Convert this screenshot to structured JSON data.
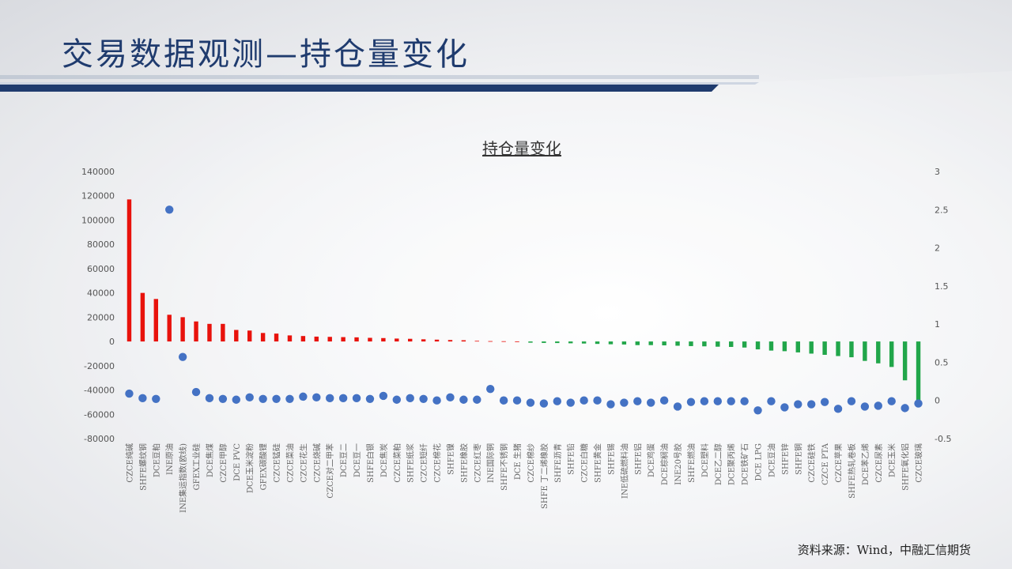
{
  "slide": {
    "title": "交易数据观测—持仓量变化",
    "source": "资料来源：Wind，中融汇信期货"
  },
  "colors": {
    "positive": "#e8120c",
    "negative": "#21a64a",
    "dot": "#4472c4",
    "title": "#1f3b6e",
    "band": "#1f3b6e"
  },
  "chart_data": {
    "type": "bar",
    "title": "持仓量变化",
    "legend": "none",
    "grid": false,
    "ylim": [
      -80000,
      140000
    ],
    "y2lim": [
      -0.5,
      3
    ],
    "yticks": [
      "140000",
      "120000",
      "100000",
      "80000",
      "60000",
      "40000",
      "20000",
      "0",
      "-20000",
      "-40000",
      "-60000",
      "-80000"
    ],
    "y2ticks": [
      "3",
      "2.5",
      "2",
      "1.5",
      "1",
      "0.5",
      "0",
      "-0.5"
    ],
    "categories": [
      "CZCE纯碱",
      "SHFE螺纹钢",
      "DCE豆粕",
      "INE原油",
      "INE集运指数(欧线)",
      "GFEX工业硅",
      "DCE焦煤",
      "CZCE甲醇",
      "DCE PVC",
      "DCE玉米淀粉",
      "GFEX碳酸锂",
      "CZCE锰硅",
      "CZCE菜油",
      "CZCE花生",
      "CZCE烧碱",
      "CZCE对二甲苯",
      "DCE豆二",
      "DCE豆一",
      "SHFE白银",
      "DCE焦炭",
      "CZCE菜粕",
      "SHFE纸浆",
      "CZCE短纤",
      "CZCE棉花",
      "SHFE镍",
      "SHFE橡胶",
      "CZCE红枣",
      "INE国际铜",
      "SHFE不锈钢",
      "DCE 生猪",
      "CZCE棉纱",
      "SHFE 丁二烯橡胶",
      "SHFE沥青",
      "SHFE铅",
      "CZCE白糖",
      "SHFE黄金",
      "SHFE锡",
      "INE低硫燃料油",
      "SHFE铝",
      "DCE鸡蛋",
      "DCE棕榈油",
      "INE20号胶",
      "SHFE燃油",
      "DCE塑料",
      "DCE乙二醇",
      "DCE聚丙烯",
      "DCE铁矿石",
      "DCE LPG",
      "DCE豆油",
      "SHFE锌",
      "SHFE铜",
      "CZCE硅铁",
      "CZCE PTA",
      "CZCE苹果",
      "SHFE热轧卷板",
      "DCE苯乙烯",
      "CZCE尿素",
      "DCE玉米",
      "SHFE氧化铝",
      "CZCE玻璃"
    ],
    "series": [
      {
        "type": "bar",
        "axis": "left",
        "values": [
          117000,
          40000,
          35000,
          22000,
          20000,
          16500,
          14500,
          14500,
          9500,
          9000,
          7000,
          6500,
          5000,
          4500,
          4000,
          3800,
          3600,
          3400,
          3000,
          2800,
          2400,
          2200,
          1800,
          1500,
          1200,
          1000,
          500,
          300,
          200,
          0,
          -1000,
          -1200,
          -1300,
          -1500,
          -1700,
          -2000,
          -2300,
          -2500,
          -3000,
          -3000,
          -3200,
          -3500,
          -3800,
          -4000,
          -4300,
          -4500,
          -5000,
          -6500,
          -7500,
          -8000,
          -9000,
          -10000,
          -11000,
          -12000,
          -13000,
          -16000,
          -18000,
          -21000,
          -32000,
          -52000
        ]
      },
      {
        "type": "scatter",
        "axis": "right",
        "values": [
          0.09,
          0.03,
          0.02,
          2.5,
          0.57,
          0.11,
          0.03,
          0.02,
          0.01,
          0.04,
          0.02,
          0.02,
          0.02,
          0.05,
          0.04,
          0.03,
          0.03,
          0.03,
          0.02,
          0.06,
          0.01,
          0.03,
          0.02,
          0.0,
          0.04,
          0.01,
          0.01,
          0.15,
          0.0,
          0.0,
          -0.03,
          -0.04,
          -0.01,
          -0.03,
          0.0,
          0.0,
          -0.05,
          -0.03,
          -0.01,
          -0.03,
          0.0,
          -0.08,
          -0.02,
          -0.01,
          -0.01,
          -0.01,
          -0.01,
          -0.13,
          -0.01,
          -0.09,
          -0.05,
          -0.05,
          -0.02,
          -0.11,
          -0.01,
          -0.08,
          -0.07,
          -0.01,
          -0.1,
          -0.04
        ]
      }
    ]
  }
}
